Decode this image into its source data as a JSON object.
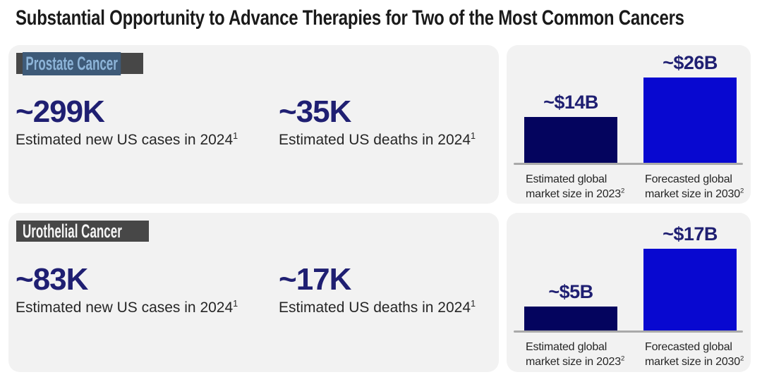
{
  "header": {
    "title": "Substantial Opportunity to Advance Therapies for Two of the Most Common Cancers"
  },
  "colors": {
    "panel_bg": "#f2f2f2",
    "title_text": "#1a1a1a",
    "navy_text": "#1f1f72",
    "body_text": "#262626",
    "bar_dark": "#04045e",
    "bar_bright": "#0808d0",
    "baseline": "#a9a9a9",
    "badge_bg": "#474747",
    "badge_text_light": "#f5f5f5",
    "badge_selection_bg": "#3e5a78",
    "badge_selection_text": "#8db4d8"
  },
  "sections": [
    {
      "badge": "Prostate Cancer",
      "badge_style": "selected-blue-highlight",
      "stats": [
        {
          "value": "~299K",
          "caption": "Estimated new US cases in 2024",
          "footnote": "1"
        },
        {
          "value": "~35K",
          "caption": "Estimated US deaths in 2024",
          "footnote": "1"
        }
      ]
    },
    {
      "badge": "Urothelial Cancer",
      "badge_style": "plain-white",
      "stats": [
        {
          "value": "~83K",
          "caption": "Estimated new US cases in 2024",
          "footnote": "1"
        },
        {
          "value": "~17K",
          "caption": "Estimated US deaths in 2024",
          "footnote": "1"
        }
      ]
    }
  ],
  "chart_data": [
    {
      "type": "bar",
      "categories": [
        "Estimated global market size in 2023",
        "Forecasted global market size in 2030"
      ],
      "category_lines": [
        [
          "Estimated global",
          "market size in 2023"
        ],
        [
          "Forecasted global",
          "market size in 2030"
        ]
      ],
      "category_footnote": "2",
      "values": [
        14,
        26
      ],
      "value_labels": [
        "~$14B",
        "~$26B"
      ],
      "bar_colors": [
        "#04045e",
        "#0808d0"
      ],
      "ylim": [
        0,
        28
      ],
      "grid": false,
      "legend": "none"
    },
    {
      "type": "bar",
      "categories": [
        "Estimated global market size in 2023",
        "Forecasted global market size in 2030"
      ],
      "category_lines": [
        [
          "Estimated global",
          "market size in 2023"
        ],
        [
          "Forecasted global",
          "market size in 2030"
        ]
      ],
      "category_footnote": "2",
      "values": [
        5,
        17
      ],
      "value_labels": [
        "~$5B",
        "~$17B"
      ],
      "bar_colors": [
        "#04045e",
        "#0808d0"
      ],
      "ylim": [
        0,
        19
      ],
      "grid": false,
      "legend": "none"
    }
  ]
}
